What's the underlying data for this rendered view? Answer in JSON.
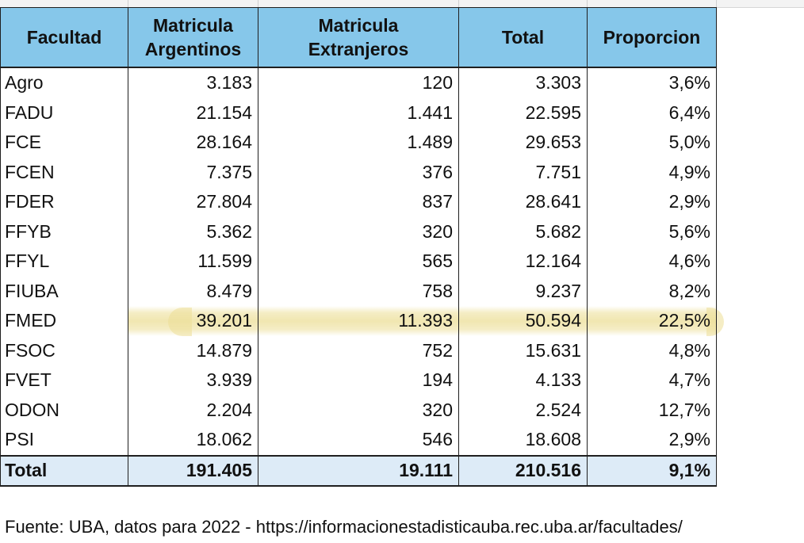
{
  "table": {
    "headers": {
      "facultad": "Facultad",
      "arg_line1": "Matricula",
      "arg_line2": "Argentinos",
      "ext_line1": "Matricula",
      "ext_line2": "Extranjeros",
      "total": "Total",
      "proporcion": "Proporcion"
    },
    "rows": [
      {
        "facultad": "Agro",
        "argentinos": "3.183",
        "extranjeros": "120",
        "total": "3.303",
        "proporcion": "3,6%"
      },
      {
        "facultad": "FADU",
        "argentinos": "21.154",
        "extranjeros": "1.441",
        "total": "22.595",
        "proporcion": "6,4%"
      },
      {
        "facultad": "FCE",
        "argentinos": "28.164",
        "extranjeros": "1.489",
        "total": "29.653",
        "proporcion": "5,0%"
      },
      {
        "facultad": "FCEN",
        "argentinos": "7.375",
        "extranjeros": "376",
        "total": "7.751",
        "proporcion": "4,9%"
      },
      {
        "facultad": "FDER",
        "argentinos": "27.804",
        "extranjeros": "837",
        "total": "28.641",
        "proporcion": "2,9%"
      },
      {
        "facultad": "FFYB",
        "argentinos": "5.362",
        "extranjeros": "320",
        "total": "5.682",
        "proporcion": "5,6%"
      },
      {
        "facultad": "FFYL",
        "argentinos": "11.599",
        "extranjeros": "565",
        "total": "12.164",
        "proporcion": "4,6%"
      },
      {
        "facultad": "FIUBA",
        "argentinos": "8.479",
        "extranjeros": "758",
        "total": "9.237",
        "proporcion": "8,2%"
      },
      {
        "facultad": "FMED",
        "argentinos": "39.201",
        "extranjeros": "11.393",
        "total": "50.594",
        "proporcion": "22,5%"
      },
      {
        "facultad": "FSOC",
        "argentinos": "14.879",
        "extranjeros": "752",
        "total": "15.631",
        "proporcion": "4,8%"
      },
      {
        "facultad": "FVET",
        "argentinos": "3.939",
        "extranjeros": "194",
        "total": "4.133",
        "proporcion": "4,7%"
      },
      {
        "facultad": "ODON",
        "argentinos": "2.204",
        "extranjeros": "320",
        "total": "2.524",
        "proporcion": "12,7%"
      },
      {
        "facultad": "PSI",
        "argentinos": "18.062",
        "extranjeros": "546",
        "total": "18.608",
        "proporcion": "2,9%"
      }
    ],
    "total_row": {
      "facultad": "Total",
      "argentinos": "191.405",
      "extranjeros": "19.111",
      "total": "210.516",
      "proporcion": "9,1%"
    },
    "highlighted_row": "FMED"
  },
  "source": "Fuente: UBA, datos para 2022 - https://informacionestadisticauba.rec.uba.ar/facultades/",
  "colors": {
    "header_bg": "#86c7ea",
    "total_bg": "#ddebf7",
    "highlight": "#ecde96"
  }
}
